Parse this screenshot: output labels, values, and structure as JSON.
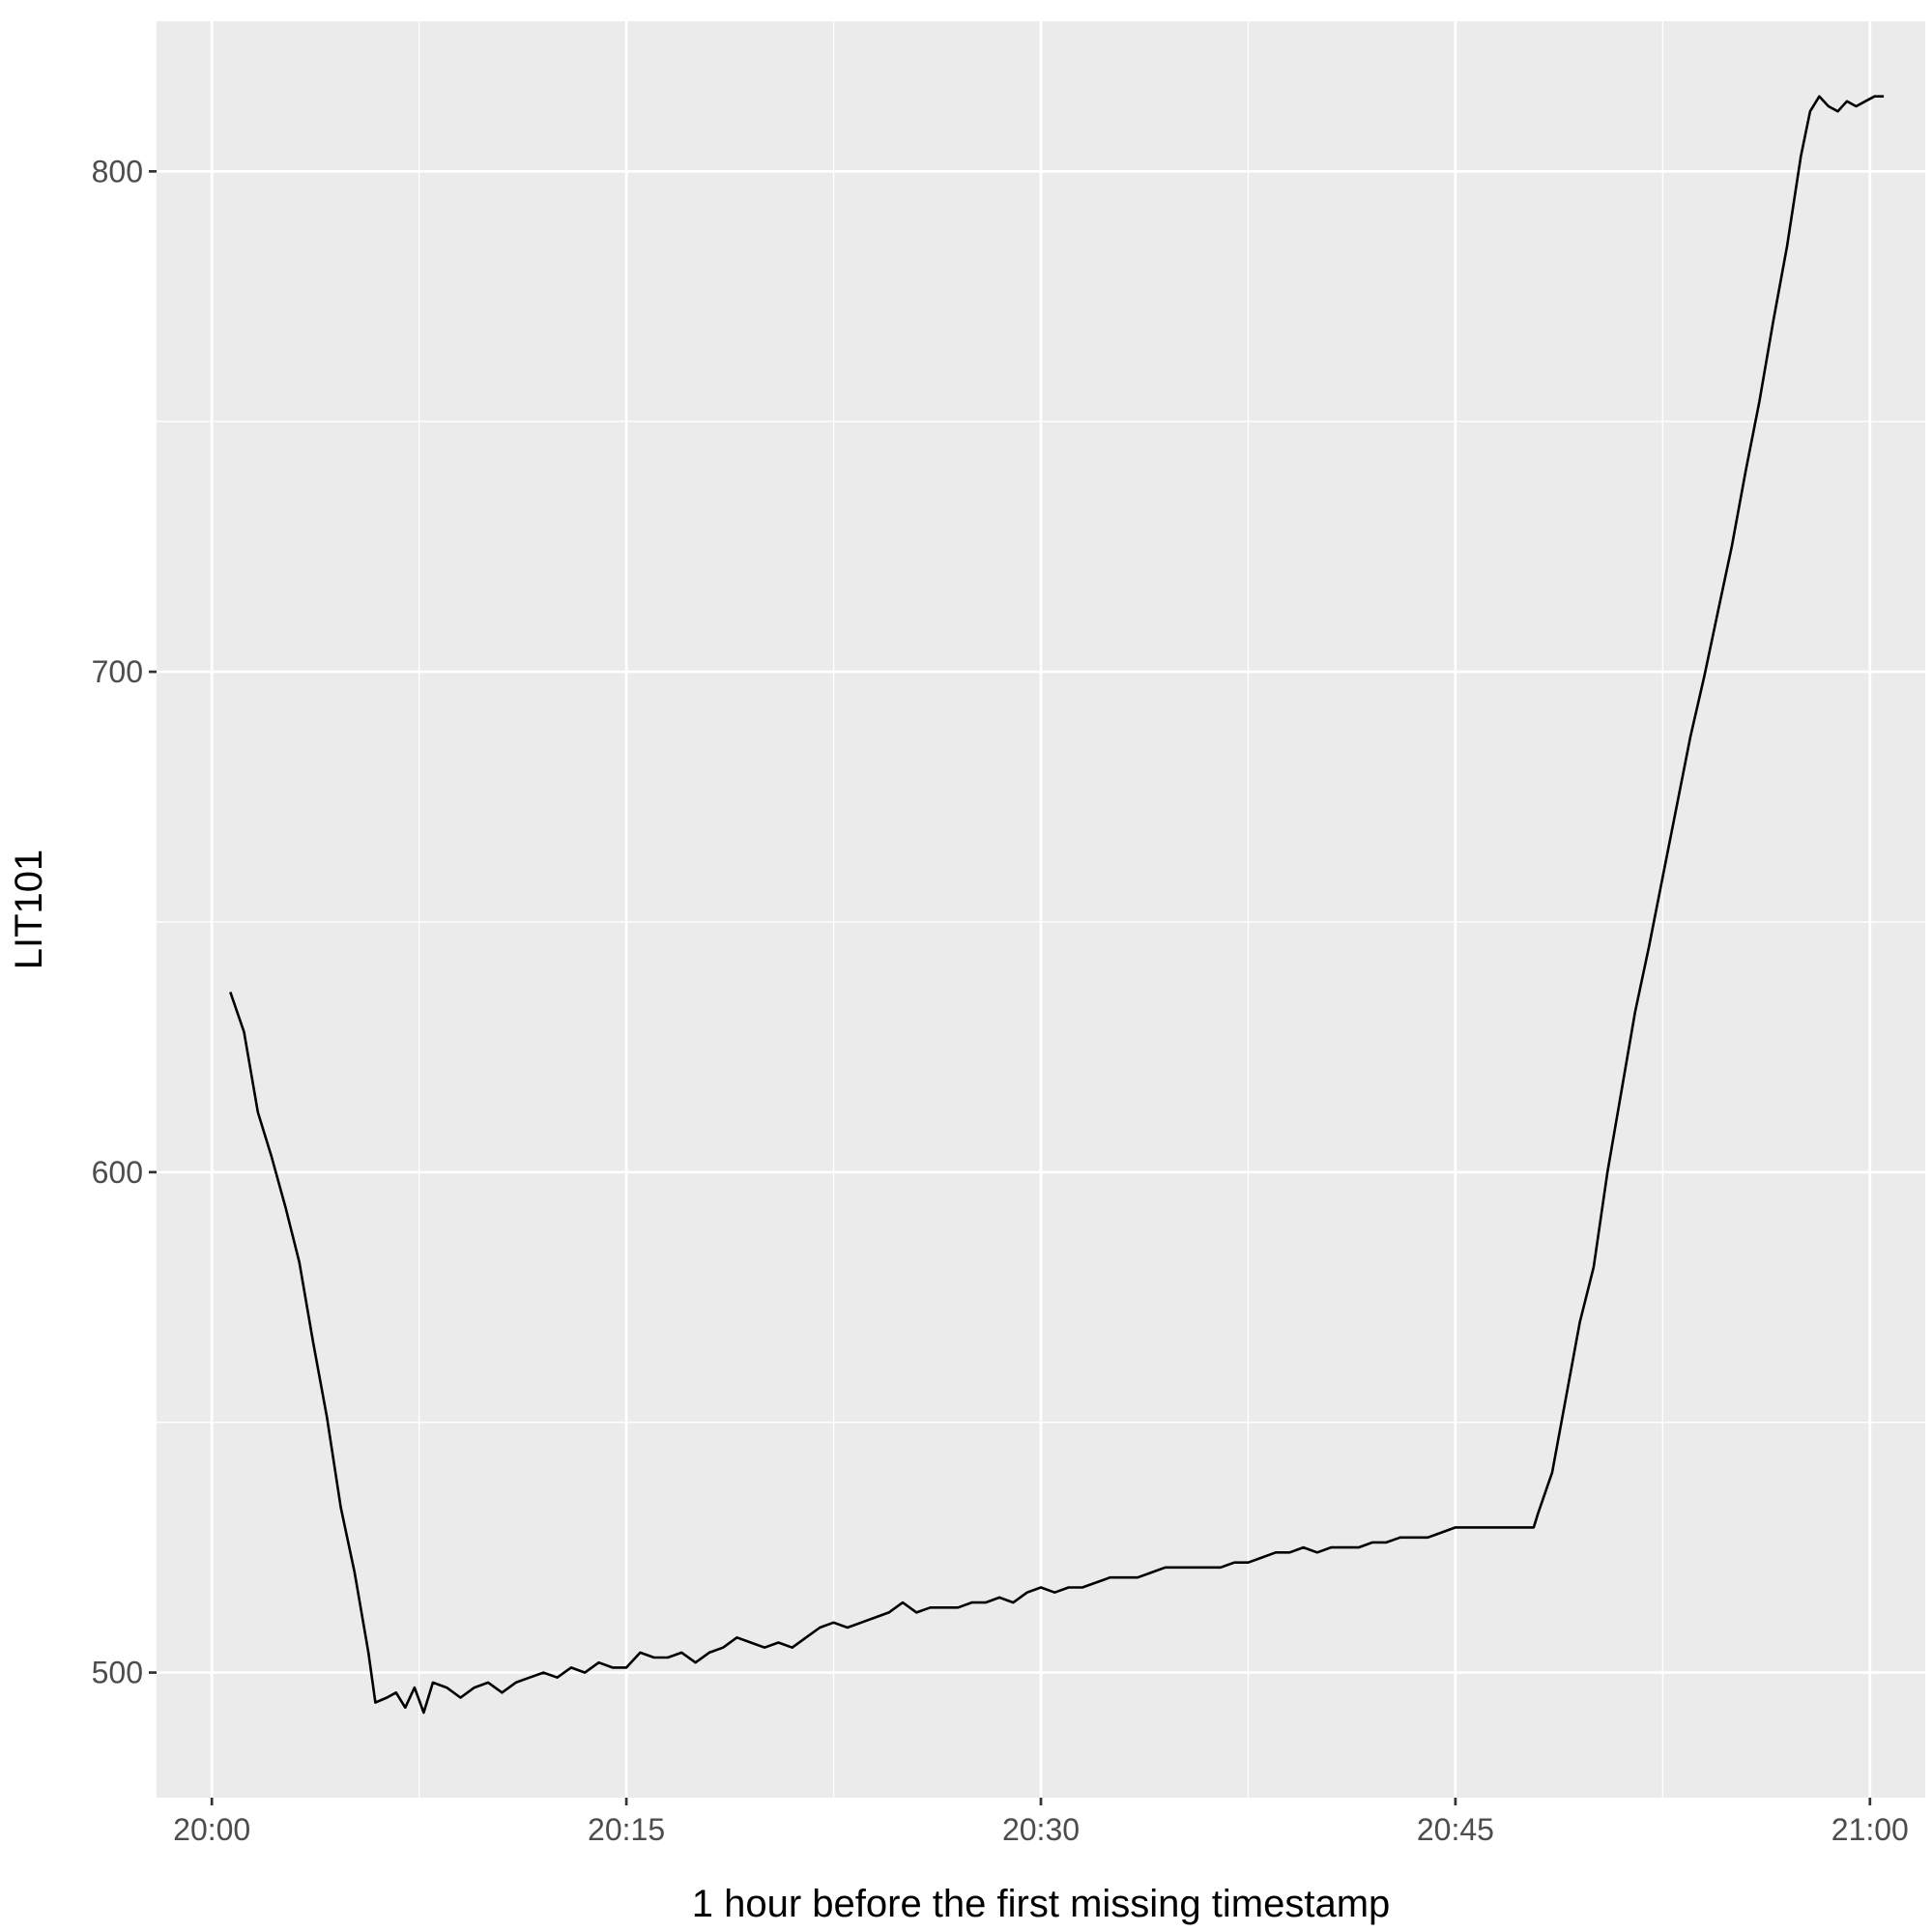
{
  "chart_data": {
    "type": "line",
    "title": "",
    "xlabel": "1 hour before the first missing timestamp",
    "ylabel": "LIT101",
    "x_unit": "time (HH:MM)",
    "xlim": [
      "19:58",
      "21:02"
    ],
    "ylim": [
      475,
      830
    ],
    "x_ticks": [
      "20:00",
      "20:15",
      "20:30",
      "20:45",
      "21:00"
    ],
    "y_ticks": [
      500,
      600,
      700,
      800
    ],
    "grid": true,
    "legend": "none",
    "colors": {
      "panel": "#EBEBEB",
      "grid": "#FFFFFF",
      "line": "#000000"
    },
    "series": [
      {
        "points": [
          [
            "20:00:40",
            636
          ],
          [
            "20:01:10",
            628
          ],
          [
            "20:01:40",
            612
          ],
          [
            "20:02:10",
            603
          ],
          [
            "20:02:40",
            593
          ],
          [
            "20:03:10",
            582
          ],
          [
            "20:03:40",
            566
          ],
          [
            "20:04:10",
            551
          ],
          [
            "20:04:40",
            533
          ],
          [
            "20:05:10",
            520
          ],
          [
            "20:05:40",
            504
          ],
          [
            "20:05:55",
            494
          ],
          [
            "20:06:20",
            495
          ],
          [
            "20:06:40",
            496
          ],
          [
            "20:07:00",
            493
          ],
          [
            "20:07:20",
            497
          ],
          [
            "20:07:40",
            492
          ],
          [
            "20:08:00",
            498
          ],
          [
            "20:08:30",
            497
          ],
          [
            "20:09:00",
            495
          ],
          [
            "20:09:30",
            497
          ],
          [
            "20:10:00",
            498
          ],
          [
            "20:10:30",
            496
          ],
          [
            "20:11:00",
            498
          ],
          [
            "20:11:30",
            499
          ],
          [
            "20:12:00",
            500
          ],
          [
            "20:12:30",
            499
          ],
          [
            "20:13:00",
            501
          ],
          [
            "20:13:30",
            500
          ],
          [
            "20:14:00",
            502
          ],
          [
            "20:14:30",
            501
          ],
          [
            "20:15:00",
            501
          ],
          [
            "20:15:30",
            504
          ],
          [
            "20:16:00",
            503
          ],
          [
            "20:16:30",
            503
          ],
          [
            "20:17:00",
            504
          ],
          [
            "20:17:30",
            502
          ],
          [
            "20:18:00",
            504
          ],
          [
            "20:18:30",
            505
          ],
          [
            "20:19:00",
            507
          ],
          [
            "20:19:30",
            506
          ],
          [
            "20:20:00",
            505
          ],
          [
            "20:20:30",
            506
          ],
          [
            "20:21:00",
            505
          ],
          [
            "20:21:30",
            507
          ],
          [
            "20:22:00",
            509
          ],
          [
            "20:22:30",
            510
          ],
          [
            "20:23:00",
            509
          ],
          [
            "20:23:30",
            510
          ],
          [
            "20:24:00",
            511
          ],
          [
            "20:24:30",
            512
          ],
          [
            "20:25:00",
            514
          ],
          [
            "20:25:30",
            512
          ],
          [
            "20:26:00",
            513
          ],
          [
            "20:26:30",
            513
          ],
          [
            "20:27:00",
            513
          ],
          [
            "20:27:30",
            514
          ],
          [
            "20:28:00",
            514
          ],
          [
            "20:28:30",
            515
          ],
          [
            "20:29:00",
            514
          ],
          [
            "20:29:30",
            516
          ],
          [
            "20:30:00",
            517
          ],
          [
            "20:30:30",
            516
          ],
          [
            "20:31:00",
            517
          ],
          [
            "20:31:30",
            517
          ],
          [
            "20:32:00",
            518
          ],
          [
            "20:32:30",
            519
          ],
          [
            "20:33:00",
            519
          ],
          [
            "20:33:30",
            519
          ],
          [
            "20:34:00",
            520
          ],
          [
            "20:34:30",
            521
          ],
          [
            "20:35:00",
            521
          ],
          [
            "20:35:30",
            521
          ],
          [
            "20:36:00",
            521
          ],
          [
            "20:36:30",
            521
          ],
          [
            "20:37:00",
            522
          ],
          [
            "20:37:30",
            522
          ],
          [
            "20:38:00",
            523
          ],
          [
            "20:38:30",
            524
          ],
          [
            "20:39:00",
            524
          ],
          [
            "20:39:30",
            525
          ],
          [
            "20:40:00",
            524
          ],
          [
            "20:40:30",
            525
          ],
          [
            "20:41:00",
            525
          ],
          [
            "20:41:30",
            525
          ],
          [
            "20:42:00",
            526
          ],
          [
            "20:42:30",
            526
          ],
          [
            "20:43:00",
            527
          ],
          [
            "20:43:30",
            527
          ],
          [
            "20:44:00",
            527
          ],
          [
            "20:44:30",
            528
          ],
          [
            "20:45:00",
            529
          ],
          [
            "20:45:30",
            529
          ],
          [
            "20:46:00",
            529
          ],
          [
            "20:46:30",
            529
          ],
          [
            "20:47:00",
            529
          ],
          [
            "20:47:30",
            529
          ],
          [
            "20:47:50",
            529
          ],
          [
            "20:48:00",
            532
          ],
          [
            "20:48:30",
            540
          ],
          [
            "20:49:00",
            555
          ],
          [
            "20:49:30",
            570
          ],
          [
            "20:50:00",
            581
          ],
          [
            "20:50:30",
            600
          ],
          [
            "20:51:00",
            616
          ],
          [
            "20:51:30",
            632
          ],
          [
            "20:52:00",
            645
          ],
          [
            "20:52:30",
            659
          ],
          [
            "20:53:00",
            673
          ],
          [
            "20:53:30",
            687
          ],
          [
            "20:54:00",
            699
          ],
          [
            "20:54:30",
            712
          ],
          [
            "20:55:00",
            725
          ],
          [
            "20:55:30",
            740
          ],
          [
            "20:56:00",
            754
          ],
          [
            "20:56:30",
            770
          ],
          [
            "20:57:00",
            785
          ],
          [
            "20:57:30",
            803
          ],
          [
            "20:57:50",
            812
          ],
          [
            "20:58:10",
            815
          ],
          [
            "20:58:30",
            813
          ],
          [
            "20:58:50",
            812
          ],
          [
            "20:59:10",
            814
          ],
          [
            "20:59:30",
            813
          ],
          [
            "20:59:50",
            814
          ],
          [
            "21:00:10",
            815
          ],
          [
            "21:00:30",
            815
          ]
        ]
      }
    ]
  }
}
